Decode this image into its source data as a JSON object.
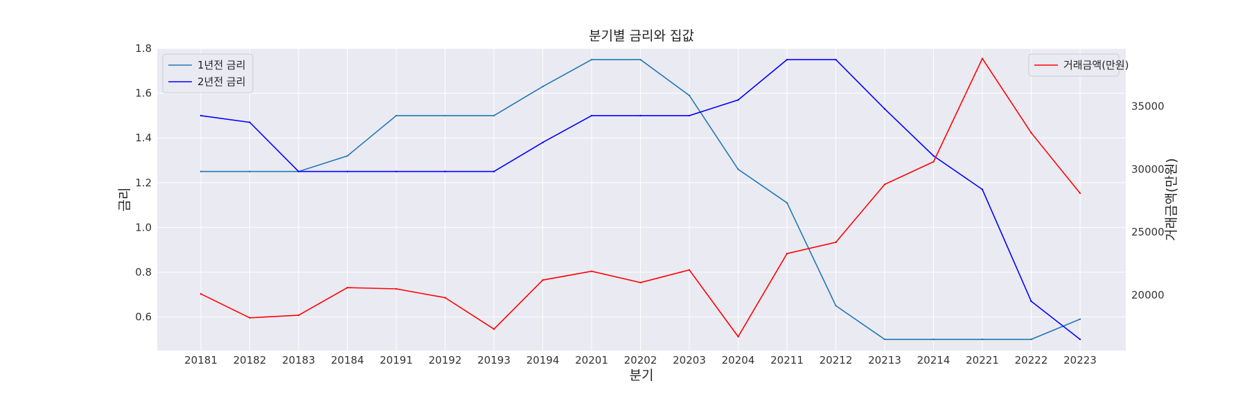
{
  "chart_data": {
    "type": "line",
    "title": "분기별 금리와 집값",
    "xlabel": "분기",
    "ylabel": "금리",
    "ylabel_right": "거래금액(만원)",
    "categories": [
      "20181",
      "20182",
      "20183",
      "20184",
      "20191",
      "20192",
      "20193",
      "20194",
      "20201",
      "20202",
      "20203",
      "20204",
      "20211",
      "20212",
      "20213",
      "20214",
      "20221",
      "20222",
      "20223"
    ],
    "ylim": [
      0.45,
      1.8
    ],
    "yticks": [
      0.6,
      0.8,
      1.0,
      1.2,
      1.4,
      1.6,
      1.8
    ],
    "ylim_right": [
      15600,
      39600
    ],
    "yticks_right": [
      20000,
      25000,
      30000,
      35000
    ],
    "grid": true,
    "series": [
      {
        "name": "1년전 금리",
        "axis": "left",
        "color": "#1f77b4",
        "values": [
          1.25,
          1.25,
          1.25,
          1.32,
          1.5,
          1.5,
          1.5,
          1.63,
          1.75,
          1.75,
          1.59,
          1.26,
          1.11,
          0.65,
          0.5,
          0.5,
          0.5,
          0.5,
          0.59
        ]
      },
      {
        "name": "2년전 금리",
        "axis": "left",
        "color": "#0000ff",
        "values": [
          1.5,
          1.47,
          1.25,
          1.25,
          1.25,
          1.25,
          1.25,
          1.38,
          1.5,
          1.5,
          1.5,
          1.57,
          1.75,
          1.75,
          1.53,
          1.32,
          1.17,
          0.67,
          0.5
        ]
      },
      {
        "name": "거래금액(만원)",
        "axis": "right",
        "color": "#ff0000",
        "values": [
          20100,
          18200,
          18400,
          20600,
          20500,
          19800,
          17300,
          21200,
          21900,
          21000,
          22000,
          16700,
          23300,
          24200,
          28800,
          30600,
          38800,
          32900,
          28100
        ]
      }
    ],
    "legend_left": "top-left",
    "legend_right": "top-right"
  }
}
